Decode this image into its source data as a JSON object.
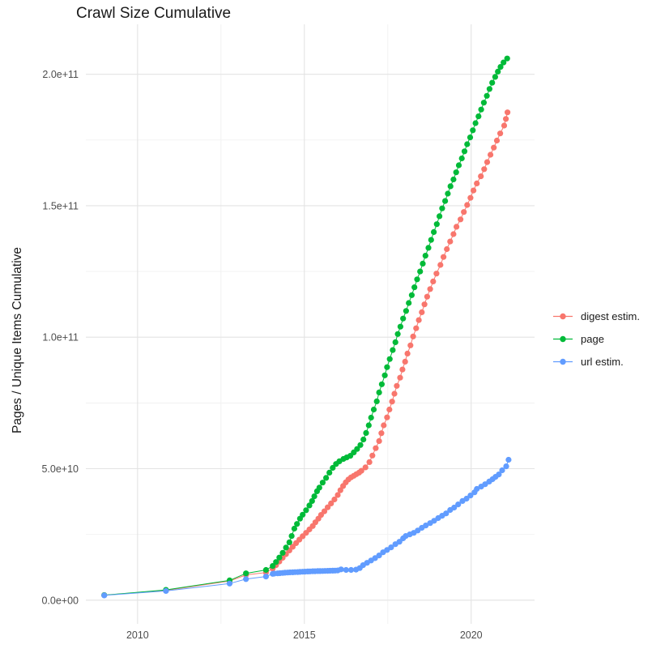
{
  "title": "Crawl Size Cumulative",
  "y_axis_title": "Pages / Unique Items Cumulative",
  "legend": {
    "items": [
      {
        "label": "digest estim.",
        "color": "#F8766D"
      },
      {
        "label": "page",
        "color": "#00BA38"
      },
      {
        "label": "url estim.",
        "color": "#619CFF"
      }
    ]
  },
  "chart_data": {
    "type": "scatter",
    "title": "Crawl Size Cumulative",
    "xlabel": "",
    "ylabel": "Pages / Unique Items Cumulative",
    "value_unit": "items, stored as billions (1e9)",
    "grid": true,
    "legend_position": "right",
    "xlim": [
      2008.45,
      2021.9
    ],
    "ylim": [
      -9,
      219
    ],
    "x_ticks": [
      {
        "value": 2010,
        "label": "2010"
      },
      {
        "value": 2015,
        "label": "2015"
      },
      {
        "value": 2020,
        "label": "2020"
      }
    ],
    "x_minor_ticks": [
      2012.5,
      2017.5
    ],
    "y_ticks": [
      {
        "value": 0,
        "label": "0.0e+00"
      },
      {
        "value": 50,
        "label": "5.0e+10"
      },
      {
        "value": 100,
        "label": "1.0e+11"
      },
      {
        "value": 150,
        "label": "1.5e+11"
      },
      {
        "value": 200,
        "label": "2.0e+11"
      }
    ],
    "y_minor_ticks": [
      25,
      75,
      125,
      175
    ],
    "series": [
      {
        "name": "digest estim.",
        "color": "#F8766D",
        "points": [
          [
            2009.0,
            1.9
          ],
          [
            2010.85,
            3.7
          ],
          [
            2012.76,
            7.3
          ],
          [
            2013.25,
            9.6
          ],
          [
            2013.85,
            10.5
          ],
          [
            2014.05,
            12.0
          ],
          [
            2014.15,
            13.3
          ],
          [
            2014.25,
            14.7
          ],
          [
            2014.35,
            16.1
          ],
          [
            2014.45,
            17.5
          ],
          [
            2014.55,
            18.9
          ],
          [
            2014.65,
            20.3
          ],
          [
            2014.75,
            21.7
          ],
          [
            2014.85,
            23.0
          ],
          [
            2014.95,
            24.3
          ],
          [
            2015.05,
            25.6
          ],
          [
            2015.15,
            26.9
          ],
          [
            2015.25,
            28.2
          ],
          [
            2015.33,
            29.6
          ],
          [
            2015.42,
            31.0
          ],
          [
            2015.5,
            32.4
          ],
          [
            2015.6,
            33.8
          ],
          [
            2015.7,
            35.3
          ],
          [
            2015.8,
            36.8
          ],
          [
            2015.9,
            38.3
          ],
          [
            2016.0,
            40.0
          ],
          [
            2016.08,
            41.8
          ],
          [
            2016.16,
            43.4
          ],
          [
            2016.24,
            44.8
          ],
          [
            2016.32,
            45.9
          ],
          [
            2016.4,
            46.7
          ],
          [
            2016.48,
            47.3
          ],
          [
            2016.56,
            47.9
          ],
          [
            2016.64,
            48.5
          ],
          [
            2016.71,
            49.2
          ],
          [
            2016.83,
            50.5
          ],
          [
            2016.95,
            52.5
          ],
          [
            2017.04,
            55.0
          ],
          [
            2017.14,
            57.8
          ],
          [
            2017.24,
            60.5
          ],
          [
            2017.31,
            63.5
          ],
          [
            2017.38,
            66.5
          ],
          [
            2017.48,
            69.5
          ],
          [
            2017.55,
            72.5
          ],
          [
            2017.63,
            75.5
          ],
          [
            2017.7,
            78.5
          ],
          [
            2017.77,
            81.5
          ],
          [
            2017.87,
            84.6
          ],
          [
            2017.94,
            87.7
          ],
          [
            2018.02,
            90.7
          ],
          [
            2018.09,
            93.8
          ],
          [
            2018.18,
            96.9
          ],
          [
            2018.26,
            100.3
          ],
          [
            2018.35,
            103.4
          ],
          [
            2018.43,
            106.5
          ],
          [
            2018.52,
            109.5
          ],
          [
            2018.6,
            112.5
          ],
          [
            2018.68,
            115.4
          ],
          [
            2018.77,
            118.3
          ],
          [
            2018.86,
            121.2
          ],
          [
            2018.96,
            124.2
          ],
          [
            2019.08,
            127.5
          ],
          [
            2019.17,
            130.5
          ],
          [
            2019.27,
            133.5
          ],
          [
            2019.37,
            136.4
          ],
          [
            2019.47,
            139.2
          ],
          [
            2019.56,
            142.0
          ],
          [
            2019.68,
            144.8
          ],
          [
            2019.78,
            147.6
          ],
          [
            2019.88,
            150.3
          ],
          [
            2019.98,
            153.0
          ],
          [
            2020.07,
            155.8
          ],
          [
            2020.17,
            158.5
          ],
          [
            2020.29,
            161.2
          ],
          [
            2020.39,
            163.9
          ],
          [
            2020.48,
            166.6
          ],
          [
            2020.58,
            169.4
          ],
          [
            2020.68,
            172.1
          ],
          [
            2020.77,
            174.8
          ],
          [
            2020.87,
            177.5
          ],
          [
            2020.99,
            180.5
          ],
          [
            2021.04,
            183.0
          ],
          [
            2021.09,
            185.5
          ]
        ]
      },
      {
        "name": "page",
        "color": "#00BA38",
        "points": [
          [
            2009.0,
            1.9
          ],
          [
            2010.85,
            3.9
          ],
          [
            2012.76,
            7.5
          ],
          [
            2013.25,
            10.2
          ],
          [
            2013.85,
            11.5
          ],
          [
            2014.05,
            13.0
          ],
          [
            2014.15,
            14.5
          ],
          [
            2014.25,
            16.2
          ],
          [
            2014.35,
            18.0
          ],
          [
            2014.45,
            20.0
          ],
          [
            2014.55,
            22.0
          ],
          [
            2014.62,
            24.4
          ],
          [
            2014.7,
            27.2
          ],
          [
            2014.78,
            29.0
          ],
          [
            2014.87,
            31.0
          ],
          [
            2014.95,
            32.5
          ],
          [
            2015.05,
            34.2
          ],
          [
            2015.15,
            36.0
          ],
          [
            2015.23,
            37.7
          ],
          [
            2015.3,
            39.5
          ],
          [
            2015.38,
            41.4
          ],
          [
            2015.45,
            42.8
          ],
          [
            2015.55,
            44.7
          ],
          [
            2015.65,
            46.5
          ],
          [
            2015.75,
            48.5
          ],
          [
            2015.85,
            50.3
          ],
          [
            2015.95,
            51.8
          ],
          [
            2016.05,
            52.8
          ],
          [
            2016.17,
            53.7
          ],
          [
            2016.27,
            54.3
          ],
          [
            2016.38,
            54.9
          ],
          [
            2016.48,
            56.2
          ],
          [
            2016.58,
            57.5
          ],
          [
            2016.68,
            59.0
          ],
          [
            2016.77,
            61.1
          ],
          [
            2016.85,
            63.6
          ],
          [
            2016.93,
            66.5
          ],
          [
            2017.0,
            69.4
          ],
          [
            2017.08,
            72.5
          ],
          [
            2017.17,
            75.6
          ],
          [
            2017.24,
            79.0
          ],
          [
            2017.32,
            82.1
          ],
          [
            2017.41,
            85.5
          ],
          [
            2017.48,
            88.6
          ],
          [
            2017.56,
            91.7
          ],
          [
            2017.65,
            95.1
          ],
          [
            2017.73,
            98.1
          ],
          [
            2017.8,
            101.2
          ],
          [
            2017.88,
            104.0
          ],
          [
            2017.96,
            107.1
          ],
          [
            2018.05,
            110.0
          ],
          [
            2018.13,
            113.0
          ],
          [
            2018.22,
            116.0
          ],
          [
            2018.3,
            119.0
          ],
          [
            2018.38,
            122.0
          ],
          [
            2018.47,
            125.0
          ],
          [
            2018.55,
            128.0
          ],
          [
            2018.63,
            131.0
          ],
          [
            2018.72,
            134.0
          ],
          [
            2018.8,
            137.0
          ],
          [
            2018.88,
            140.0
          ],
          [
            2018.97,
            143.0
          ],
          [
            2019.05,
            146.0
          ],
          [
            2019.13,
            149.0
          ],
          [
            2019.22,
            151.8
          ],
          [
            2019.3,
            154.6
          ],
          [
            2019.38,
            157.4
          ],
          [
            2019.47,
            160.0
          ],
          [
            2019.55,
            162.7
          ],
          [
            2019.63,
            165.4
          ],
          [
            2019.72,
            168.0
          ],
          [
            2019.8,
            170.7
          ],
          [
            2019.88,
            173.4
          ],
          [
            2019.97,
            176.0
          ],
          [
            2020.05,
            178.7
          ],
          [
            2020.13,
            181.4
          ],
          [
            2020.22,
            184.0
          ],
          [
            2020.3,
            186.6
          ],
          [
            2020.38,
            189.2
          ],
          [
            2020.47,
            191.8
          ],
          [
            2020.55,
            194.4
          ],
          [
            2020.63,
            196.8
          ],
          [
            2020.72,
            199.0
          ],
          [
            2020.8,
            201.0
          ],
          [
            2020.88,
            202.8
          ],
          [
            2020.97,
            204.5
          ],
          [
            2021.08,
            206.0
          ]
        ]
      },
      {
        "name": "url estim.",
        "color": "#619CFF",
        "points": [
          [
            2009.0,
            1.8
          ],
          [
            2010.85,
            3.5
          ],
          [
            2012.76,
            6.3
          ],
          [
            2013.25,
            8.0
          ],
          [
            2013.85,
            9.0
          ],
          [
            2014.05,
            10.0
          ],
          [
            2014.1,
            10.1
          ],
          [
            2014.2,
            10.2
          ],
          [
            2014.27,
            10.25
          ],
          [
            2014.35,
            10.35
          ],
          [
            2014.42,
            10.45
          ],
          [
            2014.5,
            10.5
          ],
          [
            2014.57,
            10.55
          ],
          [
            2014.65,
            10.6
          ],
          [
            2014.72,
            10.65
          ],
          [
            2014.8,
            10.7
          ],
          [
            2014.87,
            10.75
          ],
          [
            2014.95,
            10.8
          ],
          [
            2015.02,
            10.85
          ],
          [
            2015.1,
            10.9
          ],
          [
            2015.17,
            10.95
          ],
          [
            2015.25,
            11.0
          ],
          [
            2015.32,
            11.0
          ],
          [
            2015.4,
            11.05
          ],
          [
            2015.47,
            11.07
          ],
          [
            2015.55,
            11.1
          ],
          [
            2015.62,
            11.12
          ],
          [
            2015.7,
            11.15
          ],
          [
            2015.77,
            11.17
          ],
          [
            2015.85,
            11.2
          ],
          [
            2015.92,
            11.25
          ],
          [
            2016.0,
            11.3
          ],
          [
            2016.1,
            11.7
          ],
          [
            2016.25,
            11.5
          ],
          [
            2016.4,
            11.5
          ],
          [
            2016.55,
            11.6
          ],
          [
            2016.66,
            12.2
          ],
          [
            2016.76,
            13.3
          ],
          [
            2016.88,
            14.2
          ],
          [
            2017.0,
            15.1
          ],
          [
            2017.12,
            16.0
          ],
          [
            2017.24,
            17.0
          ],
          [
            2017.36,
            18.2
          ],
          [
            2017.48,
            19.1
          ],
          [
            2017.6,
            20.1
          ],
          [
            2017.73,
            21.3
          ],
          [
            2017.85,
            22.2
          ],
          [
            2017.96,
            23.5
          ],
          [
            2018.04,
            24.4
          ],
          [
            2018.16,
            25.0
          ],
          [
            2018.28,
            25.6
          ],
          [
            2018.4,
            26.5
          ],
          [
            2018.52,
            27.5
          ],
          [
            2018.64,
            28.4
          ],
          [
            2018.77,
            29.3
          ],
          [
            2018.89,
            30.2
          ],
          [
            2019.01,
            31.2
          ],
          [
            2019.13,
            32.1
          ],
          [
            2019.25,
            33.0
          ],
          [
            2019.37,
            34.3
          ],
          [
            2019.49,
            35.2
          ],
          [
            2019.61,
            36.4
          ],
          [
            2019.74,
            37.7
          ],
          [
            2019.86,
            38.6
          ],
          [
            2019.98,
            39.8
          ],
          [
            2020.1,
            41.0
          ],
          [
            2020.17,
            42.3
          ],
          [
            2020.3,
            43.2
          ],
          [
            2020.42,
            44.1
          ],
          [
            2020.54,
            45.1
          ],
          [
            2020.64,
            46.0
          ],
          [
            2020.73,
            46.9
          ],
          [
            2020.83,
            47.8
          ],
          [
            2020.93,
            49.4
          ],
          [
            2021.05,
            50.9
          ],
          [
            2021.12,
            53.4
          ]
        ]
      }
    ]
  }
}
